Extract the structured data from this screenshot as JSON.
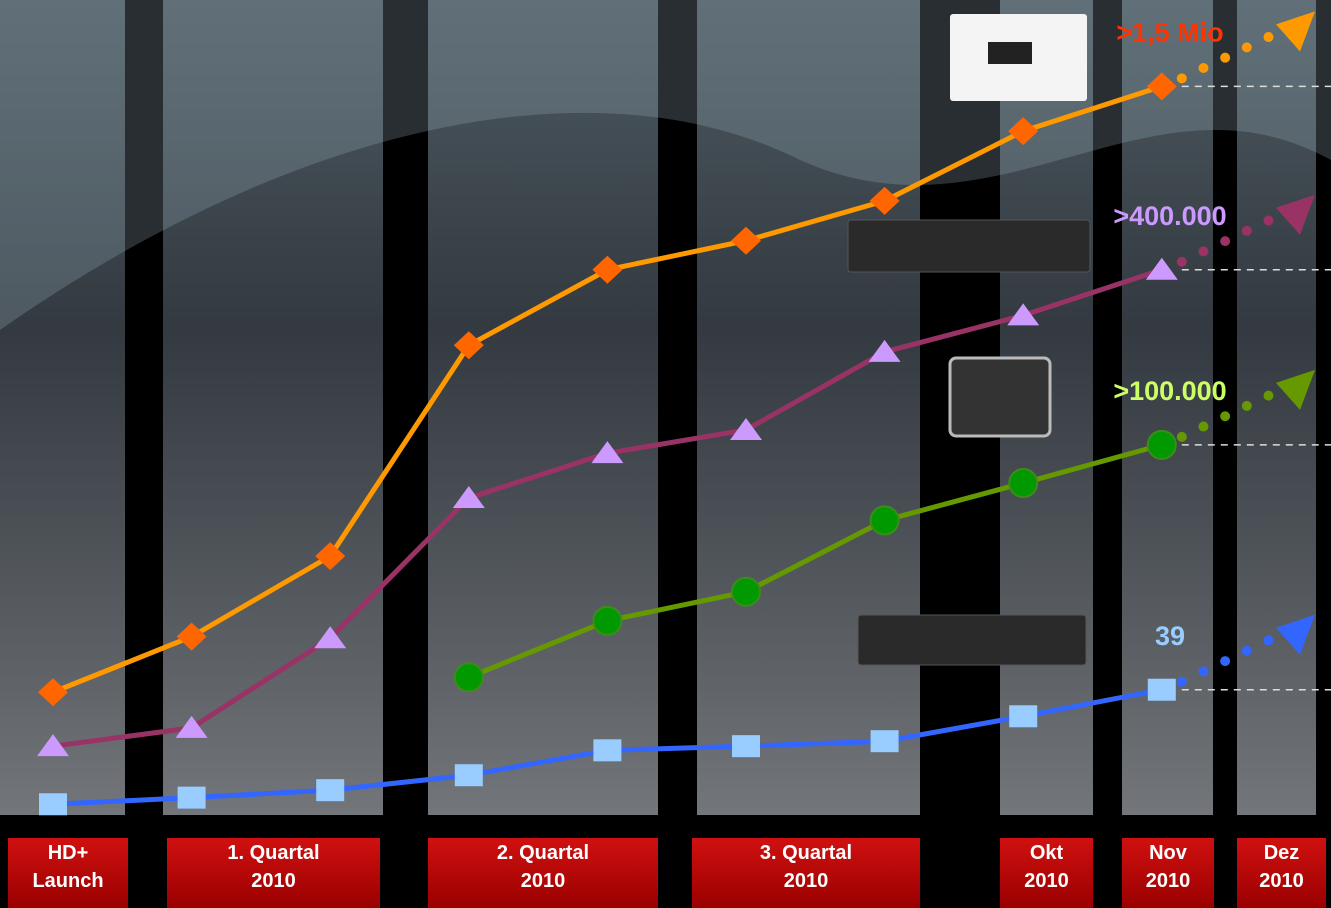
{
  "chart_data": {
    "type": "line",
    "categories": [
      null,
      null,
      null,
      null,
      null,
      null,
      null,
      null,
      null
    ],
    "ylim": [
      0,
      100
    ],
    "periods": [
      {
        "lines": [
          "HD+",
          "Launch"
        ]
      },
      {
        "lines": [
          "1. Quartal",
          "2010"
        ]
      },
      {
        "lines": [
          "2. Quartal",
          "2010"
        ]
      },
      {
        "lines": [
          "3. Quartal",
          "2010"
        ]
      },
      {
        "lines": [
          "Okt",
          "2010"
        ]
      },
      {
        "lines": [
          "Nov",
          "2010"
        ]
      },
      {
        "lines": [
          "Dez",
          "2010"
        ]
      }
    ],
    "series": [
      {
        "end_label": ">1,5 Mio",
        "label_color": "#ff3300",
        "color": "#ff9900",
        "marker": "diamond",
        "marker_color": "#ff6600",
        "values": [
          16.6,
          23.3,
          33.0,
          58.4,
          67.5,
          71.0,
          75.8,
          84.2,
          89.6
        ]
      },
      {
        "end_label": ">400.000",
        "label_color": "#cc99ff",
        "color": "#993366",
        "marker": "triangle",
        "marker_color": "#cc99ff",
        "values": [
          10.1,
          12.3,
          23.1,
          40.0,
          45.4,
          48.2,
          57.6,
          62.0,
          67.5
        ]
      },
      {
        "end_label": ">100.000",
        "label_color": "#ccff66",
        "color": "#669900",
        "marker": "circle",
        "marker_color": "#009900",
        "values": [
          null,
          null,
          null,
          18.4,
          25.2,
          28.7,
          37.3,
          41.8,
          46.4
        ]
      },
      {
        "end_label": "39",
        "label_color": "#99ccff",
        "color": "#3366ff",
        "marker": "square",
        "marker_color": "#99ccff",
        "values": [
          3.1,
          3.9,
          4.8,
          6.6,
          9.6,
          10.1,
          10.7,
          13.7,
          16.9
        ]
      }
    ]
  }
}
